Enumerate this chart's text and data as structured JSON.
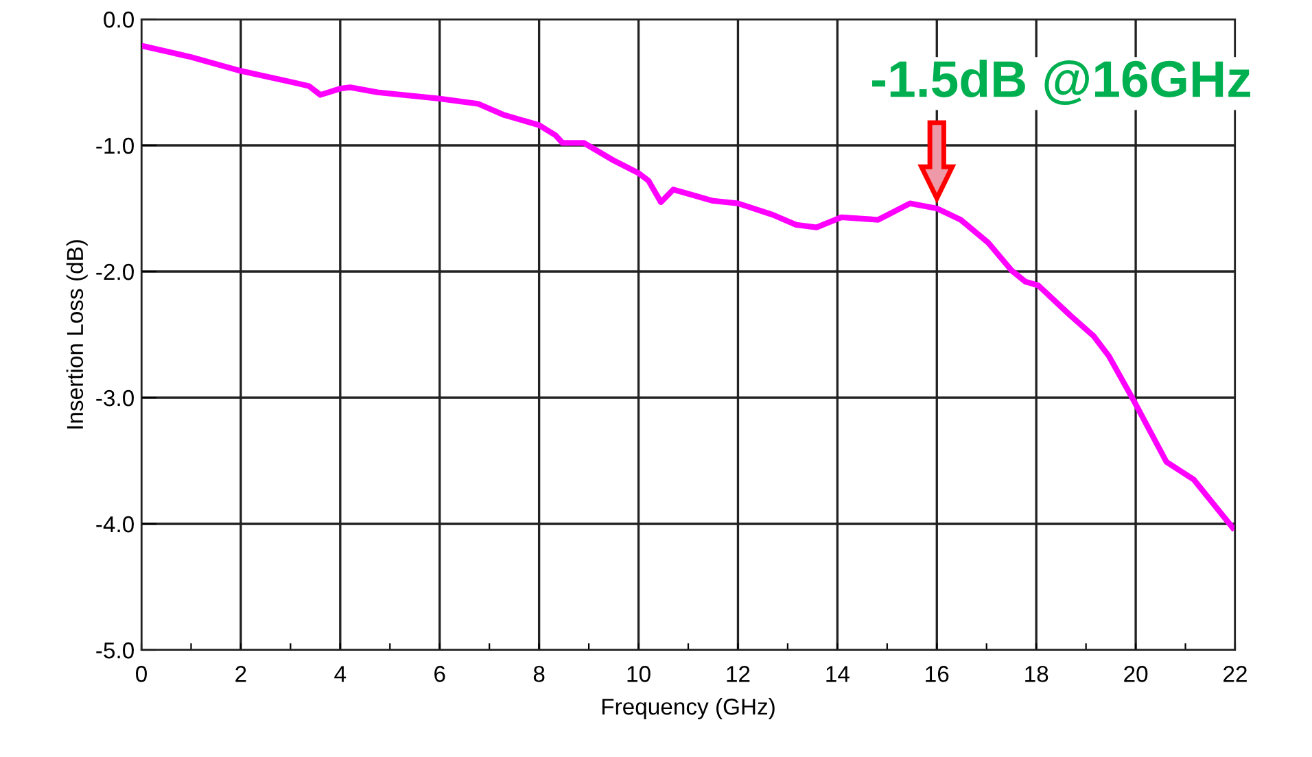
{
  "chart_data": {
    "type": "line",
    "xlabel": "Frequency (GHz)",
    "ylabel": "Insertion Loss (dB)",
    "series": [
      {
        "color": "#ff00ff",
        "x": [
          0,
          1,
          2,
          3.04,
          3.37,
          3.6,
          4.0,
          4.2,
          4.75,
          6.0,
          6.77,
          7.3,
          8.0,
          8.33,
          8.47,
          8.9,
          9.5,
          10.0,
          10.2,
          10.45,
          10.7,
          11.5,
          12.0,
          12.7,
          13.17,
          13.58,
          14.08,
          14.82,
          15.46,
          16.0,
          16.48,
          17.03,
          17.5,
          17.78,
          18.04,
          18.69,
          19.15,
          19.46,
          19.97,
          20.62,
          21.17,
          21.95
        ],
        "values": [
          -0.21,
          -0.3,
          -0.41,
          -0.5,
          -0.53,
          -0.6,
          -0.55,
          -0.54,
          -0.58,
          -0.63,
          -0.67,
          -0.76,
          -0.84,
          -0.92,
          -0.98,
          -0.98,
          -1.12,
          -1.22,
          -1.28,
          -1.45,
          -1.35,
          -1.44,
          -1.46,
          -1.55,
          -1.63,
          -1.65,
          -1.57,
          -1.59,
          -1.46,
          -1.5,
          -1.59,
          -1.77,
          -1.99,
          -2.08,
          -2.11,
          -2.35,
          -2.51,
          -2.67,
          -3.03,
          -3.51,
          -3.65,
          -4.03
        ]
      }
    ],
    "annotations": [
      {
        "text": "-1.5dB @16GHz",
        "x": 16,
        "y": -1.5
      }
    ],
    "xlim": [
      0,
      22
    ],
    "xticks": [
      0,
      {
        "value": 1,
        "label": null
      },
      2,
      {
        "value": 3,
        "label": null
      },
      4,
      {
        "value": 5,
        "label": null
      },
      6,
      {
        "value": 7,
        "label": null
      },
      8,
      {
        "value": 9,
        "label": null
      },
      10,
      {
        "value": 11,
        "label": null
      },
      12,
      {
        "value": 13,
        "label": null
      },
      14,
      {
        "value": 15,
        "label": null
      },
      16,
      {
        "value": 17,
        "label": null
      },
      18,
      {
        "value": 19,
        "label": null
      },
      20,
      {
        "value": 21,
        "label": null
      },
      22
    ],
    "ylim": [
      -5,
      0
    ],
    "yticks": [
      {
        "value": -5,
        "label": "-5.0"
      },
      {
        "value": -4,
        "label": "-4.0"
      },
      {
        "value": -3,
        "label": "-3.0"
      },
      {
        "value": -2,
        "label": "-2.0"
      },
      {
        "value": -1,
        "label": "-1.0"
      },
      {
        "value": 0,
        "label": "0.0"
      }
    ],
    "grid": true,
    "legend": false,
    "marker": "none",
    "line_style": "solid"
  }
}
